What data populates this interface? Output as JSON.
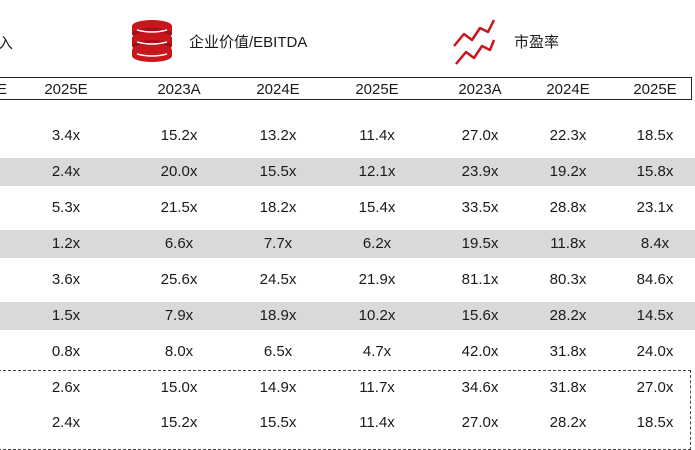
{
  "header": {
    "left_label_fragment": "入",
    "ev_ebitda_label": "企业价值/EBITDA",
    "pe_label": "市盈率",
    "icons": [
      "coin-stack-icon",
      "trend-chart-icon"
    ]
  },
  "columns": {
    "left_fragment": "E",
    "labels": [
      "2025E",
      "2023A",
      "2024E",
      "2025E",
      "2023A",
      "2024E",
      "2025E"
    ]
  },
  "rows": [
    [
      "3.4x",
      "15.2x",
      "13.2x",
      "11.4x",
      "27.0x",
      "22.3x",
      "18.5x"
    ],
    [
      "2.4x",
      "20.0x",
      "15.5x",
      "12.1x",
      "23.9x",
      "19.2x",
      "15.8x"
    ],
    [
      "5.3x",
      "21.5x",
      "18.2x",
      "15.4x",
      "33.5x",
      "28.8x",
      "23.1x"
    ],
    [
      "1.2x",
      "6.6x",
      "7.7x",
      "6.2x",
      "19.5x",
      "11.8x",
      "8.4x"
    ],
    [
      "3.6x",
      "25.6x",
      "24.5x",
      "21.9x",
      "81.1x",
      "80.3x",
      "84.6x"
    ],
    [
      "1.5x",
      "7.9x",
      "18.9x",
      "10.2x",
      "15.6x",
      "28.2x",
      "14.5x"
    ],
    [
      "0.8x",
      "8.0x",
      "6.5x",
      "4.7x",
      "42.0x",
      "31.8x",
      "24.0x"
    ],
    [
      "2.6x",
      "15.0x",
      "14.9x",
      "11.7x",
      "34.6x",
      "31.8x",
      "27.0x"
    ],
    [
      "2.4x",
      "15.2x",
      "15.5x",
      "11.4x",
      "27.0x",
      "28.2x",
      "18.5x"
    ]
  ],
  "colors": {
    "accent_red": "#c8161d",
    "row_shade": "#d9d9d9"
  }
}
